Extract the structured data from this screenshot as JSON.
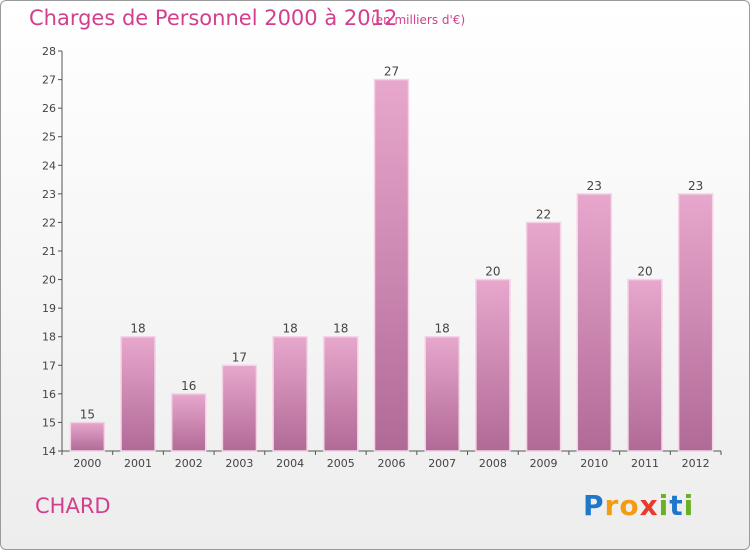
{
  "header": {
    "title": "Charges de Personnel 2000 à 2012",
    "unit": "(en milliers d'€)"
  },
  "footer": {
    "commune": "CHARD",
    "brand_letters": [
      {
        "ch": "P",
        "color": "#1f77c9"
      },
      {
        "ch": "r",
        "color": "#f39c12"
      },
      {
        "ch": "o",
        "color": "#f39c12"
      },
      {
        "ch": "x",
        "color": "#e63b2e"
      },
      {
        "ch": "i",
        "color": "#6ab023"
      },
      {
        "ch": "t",
        "color": "#1f77c9"
      },
      {
        "ch": "i",
        "color": "#6ab023"
      }
    ]
  },
  "colors": {
    "accent": "#d43f8d",
    "bar_top": "#e8a7cd",
    "bar_bottom": "#b06a96"
  },
  "chart_data": {
    "type": "bar",
    "categories": [
      "2000",
      "2001",
      "2002",
      "2003",
      "2004",
      "2005",
      "2006",
      "2007",
      "2008",
      "2009",
      "2010",
      "2011",
      "2012"
    ],
    "values": [
      15,
      18,
      16,
      17,
      18,
      18,
      27,
      18,
      20,
      22,
      23,
      20,
      23
    ],
    "ylim": [
      14,
      28
    ],
    "yticks": [
      14,
      15,
      16,
      17,
      18,
      19,
      20,
      21,
      22,
      23,
      24,
      25,
      26,
      27,
      28
    ],
    "grid": false,
    "xlabel": "",
    "ylabel": ""
  }
}
